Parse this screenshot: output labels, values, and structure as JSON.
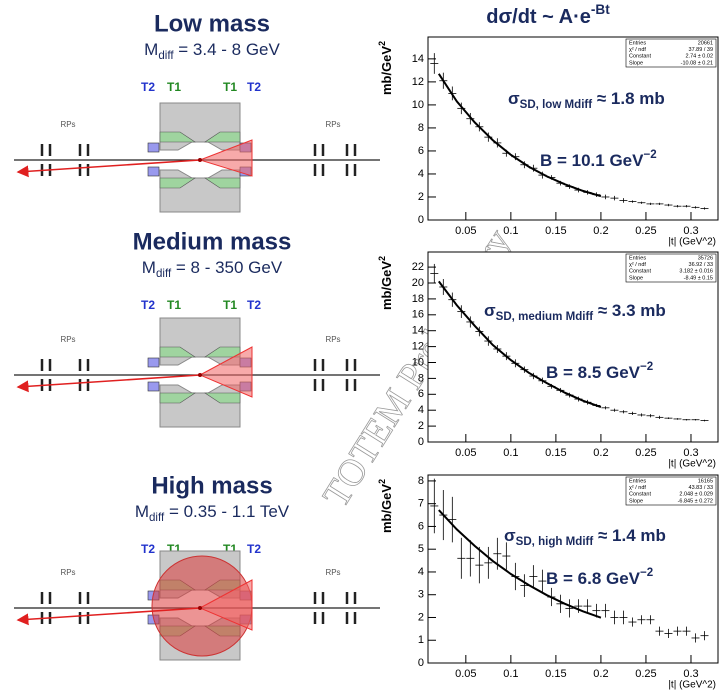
{
  "figure_title": {
    "main": "dσ/dt ~ A·e",
    "sup": "-Bt"
  },
  "watermark": "TOTEM Preliminary",
  "diagrams": [
    {
      "title": "Low mass",
      "mdiff": {
        "main": "M",
        "sub": "diff",
        "rest": " = 3.4 - 8 GeV"
      },
      "labels": [
        "T2",
        "T1",
        "T1",
        "T2"
      ],
      "rps": [
        "RPs",
        "RPs"
      ]
    },
    {
      "title": "Medium mass",
      "mdiff": {
        "main": "M",
        "sub": "diff",
        "rest": " = 8 - 350 GeV"
      },
      "labels": [
        "T2",
        "T1",
        "T1",
        "T2"
      ],
      "rps": [
        "RPs",
        "RPs"
      ]
    },
    {
      "title": "High mass",
      "mdiff": {
        "main": "M",
        "sub": "diff",
        "rest": " = 0.35 - 1.1 TeV"
      },
      "labels": [
        "T2",
        "T1",
        "T1",
        "T2"
      ],
      "rps": [
        "RPs",
        "RPs"
      ]
    }
  ],
  "chart_data": [
    {
      "type": "errorbar",
      "ylabel": {
        "main": "mb/GeV",
        "sup": "2"
      },
      "xlabel": "|t| (GeV^2)",
      "xlim": [
        0.008,
        0.33
      ],
      "xticks": [
        0.05,
        0.1,
        0.15,
        0.2,
        0.25,
        0.3
      ],
      "ylim": [
        0,
        15.9
      ],
      "yticks": [
        0,
        2,
        4,
        6,
        8,
        10,
        12,
        14
      ],
      "color": "#000000",
      "x": [
        0.015,
        0.025,
        0.035,
        0.045,
        0.055,
        0.065,
        0.075,
        0.085,
        0.095,
        0.105,
        0.115,
        0.125,
        0.135,
        0.145,
        0.155,
        0.165,
        0.175,
        0.185,
        0.195,
        0.205,
        0.215,
        0.225,
        0.235,
        0.245,
        0.255,
        0.265,
        0.275,
        0.285,
        0.295,
        0.305,
        0.315
      ],
      "values": [
        13.6,
        12.1,
        11.0,
        9.7,
        8.8,
        8.1,
        7.2,
        6.7,
        5.8,
        5.5,
        4.8,
        4.5,
        3.9,
        3.7,
        3.2,
        2.9,
        2.6,
        2.4,
        2.2,
        2.0,
        1.9,
        1.7,
        1.6,
        1.5,
        1.4,
        1.4,
        1.3,
        1.2,
        1.2,
        1.1,
        1.0
      ],
      "errors": [
        0.9,
        0.7,
        0.6,
        0.5,
        0.5,
        0.4,
        0.4,
        0.4,
        0.3,
        0.3,
        0.3,
        0.3,
        0.3,
        0.2,
        0.2,
        0.2,
        0.2,
        0.2,
        0.2,
        0.2,
        0.2,
        0.2,
        0.1,
        0.1,
        0.1,
        0.1,
        0.1,
        0.1,
        0.1,
        0.1,
        0.1
      ],
      "fit": {
        "x": [
          0.02,
          0.04,
          0.06,
          0.08,
          0.1,
          0.12,
          0.14,
          0.16,
          0.18,
          0.2
        ],
        "values": [
          12.7,
          10.3,
          8.47,
          6.93,
          5.66,
          4.63,
          3.79,
          3.1,
          2.53,
          2.07
        ]
      },
      "stats": [
        [
          "Entries",
          "20661"
        ],
        [
          "χ² / ndf",
          "37.89 / 39"
        ],
        [
          "Constant",
          "2.74 ± 0.02"
        ],
        [
          "Slope",
          "-10.08 ± 0.21"
        ]
      ],
      "annotations": [
        {
          "main": "σ",
          "sub": "SD, low Mdiff",
          "rest": " ≈ 1.8 mb"
        },
        {
          "main": "B = 10.1 GeV",
          "sup": "−2"
        }
      ]
    },
    {
      "type": "errorbar",
      "ylabel": {
        "main": "mb/GeV",
        "sup": "2"
      },
      "xlabel": "|t| (GeV^2)",
      "xlim": [
        0.008,
        0.33
      ],
      "xticks": [
        0.05,
        0.1,
        0.15,
        0.2,
        0.25,
        0.3
      ],
      "ylim": [
        0,
        23.9
      ],
      "yticks": [
        0,
        2,
        4,
        6,
        8,
        10,
        12,
        14,
        16,
        18,
        20,
        22
      ],
      "color": "#000000",
      "x": [
        0.015,
        0.025,
        0.035,
        0.045,
        0.055,
        0.065,
        0.075,
        0.085,
        0.095,
        0.105,
        0.115,
        0.125,
        0.135,
        0.145,
        0.155,
        0.165,
        0.175,
        0.185,
        0.195,
        0.205,
        0.215,
        0.225,
        0.235,
        0.245,
        0.255,
        0.265,
        0.275,
        0.285,
        0.295,
        0.305,
        0.315
      ],
      "values": [
        21.2,
        19.5,
        17.9,
        16.4,
        15.1,
        13.9,
        12.7,
        11.7,
        10.8,
        9.9,
        9.1,
        8.3,
        7.7,
        7.0,
        6.5,
        5.9,
        5.4,
        5.0,
        4.6,
        4.3,
        4.0,
        3.8,
        3.6,
        3.4,
        3.3,
        3.1,
        3.0,
        2.9,
        2.8,
        2.8,
        2.7
      ],
      "errors": [
        1.2,
        1.0,
        0.9,
        0.8,
        0.7,
        0.6,
        0.6,
        0.5,
        0.5,
        0.5,
        0.4,
        0.4,
        0.4,
        0.3,
        0.3,
        0.3,
        0.3,
        0.3,
        0.2,
        0.2,
        0.2,
        0.2,
        0.2,
        0.2,
        0.2,
        0.2,
        0.1,
        0.1,
        0.1,
        0.1,
        0.1
      ],
      "fit": {
        "x": [
          0.02,
          0.04,
          0.06,
          0.08,
          0.1,
          0.12,
          0.14,
          0.16,
          0.18,
          0.2
        ],
        "values": [
          20.2,
          17.2,
          14.6,
          12.2,
          10.3,
          8.7,
          7.4,
          6.2,
          5.2,
          4.4
        ]
      },
      "stats": [
        [
          "Entries",
          "35726"
        ],
        [
          "χ² / ndf",
          "36.92 / 33"
        ],
        [
          "Constant",
          "3.182 ± 0.016"
        ],
        [
          "Slope",
          "-8.49 ± 0.15"
        ]
      ],
      "annotations": [
        {
          "main": "σ",
          "sub": "SD, medium Mdiff",
          "rest": " ≈ 3.3 mb"
        },
        {
          "main": "B = 8.5 GeV",
          "sup": "−2"
        }
      ]
    },
    {
      "type": "errorbar",
      "ylabel": {
        "main": "mb/GeV",
        "sup": "2"
      },
      "xlabel": "|t| (GeV^2)",
      "xlim": [
        0.008,
        0.33
      ],
      "xticks": [
        0.05,
        0.1,
        0.15,
        0.2,
        0.25,
        0.3
      ],
      "ylim": [
        0,
        8.26
      ],
      "yticks": [
        0,
        1,
        2,
        3,
        4,
        5,
        6,
        7,
        8
      ],
      "color": "#000000",
      "x": [
        0.015,
        0.025,
        0.035,
        0.045,
        0.055,
        0.065,
        0.075,
        0.085,
        0.095,
        0.105,
        0.115,
        0.125,
        0.135,
        0.145,
        0.155,
        0.165,
        0.175,
        0.185,
        0.195,
        0.205,
        0.215,
        0.225,
        0.235,
        0.245,
        0.255,
        0.265,
        0.275,
        0.285,
        0.295,
        0.305,
        0.315
      ],
      "values": [
        6.9,
        6.5,
        6.3,
        4.6,
        4.6,
        4.3,
        4.4,
        4.8,
        4.7,
        3.8,
        3.4,
        3.8,
        3.6,
        2.9,
        2.6,
        2.4,
        2.5,
        2.5,
        2.3,
        2.3,
        2.0,
        2.0,
        1.8,
        1.9,
        1.9,
        1.4,
        1.3,
        1.4,
        1.4,
        1.1,
        1.2
      ],
      "errors": [
        1.2,
        1.1,
        1.0,
        0.9,
        0.8,
        0.8,
        0.7,
        0.7,
        0.6,
        0.6,
        0.5,
        0.5,
        0.5,
        0.4,
        0.4,
        0.4,
        0.3,
        0.3,
        0.3,
        0.3,
        0.3,
        0.3,
        0.2,
        0.2,
        0.2,
        0.2,
        0.2,
        0.2,
        0.2,
        0.2,
        0.2
      ],
      "fit": {
        "x": [
          0.02,
          0.04,
          0.06,
          0.08,
          0.1,
          0.12,
          0.14,
          0.16,
          0.18,
          0.2
        ],
        "values": [
          6.72,
          5.87,
          5.14,
          4.48,
          3.91,
          3.42,
          2.98,
          2.6,
          2.27,
          1.99
        ]
      },
      "stats": [
        [
          "Entries",
          "16165"
        ],
        [
          "χ² / ndf",
          "43.83 / 33"
        ],
        [
          "Constant",
          "2.048 ± 0.029"
        ],
        [
          "Slope",
          "-6.845 ± 0.272"
        ]
      ],
      "annotations": [
        {
          "main": "σ",
          "sub": "SD, high Mdiff",
          "rest": " ≈ 1.4 mb"
        },
        {
          "main": "B = 6.8 GeV",
          "sup": "−2"
        }
      ]
    }
  ]
}
